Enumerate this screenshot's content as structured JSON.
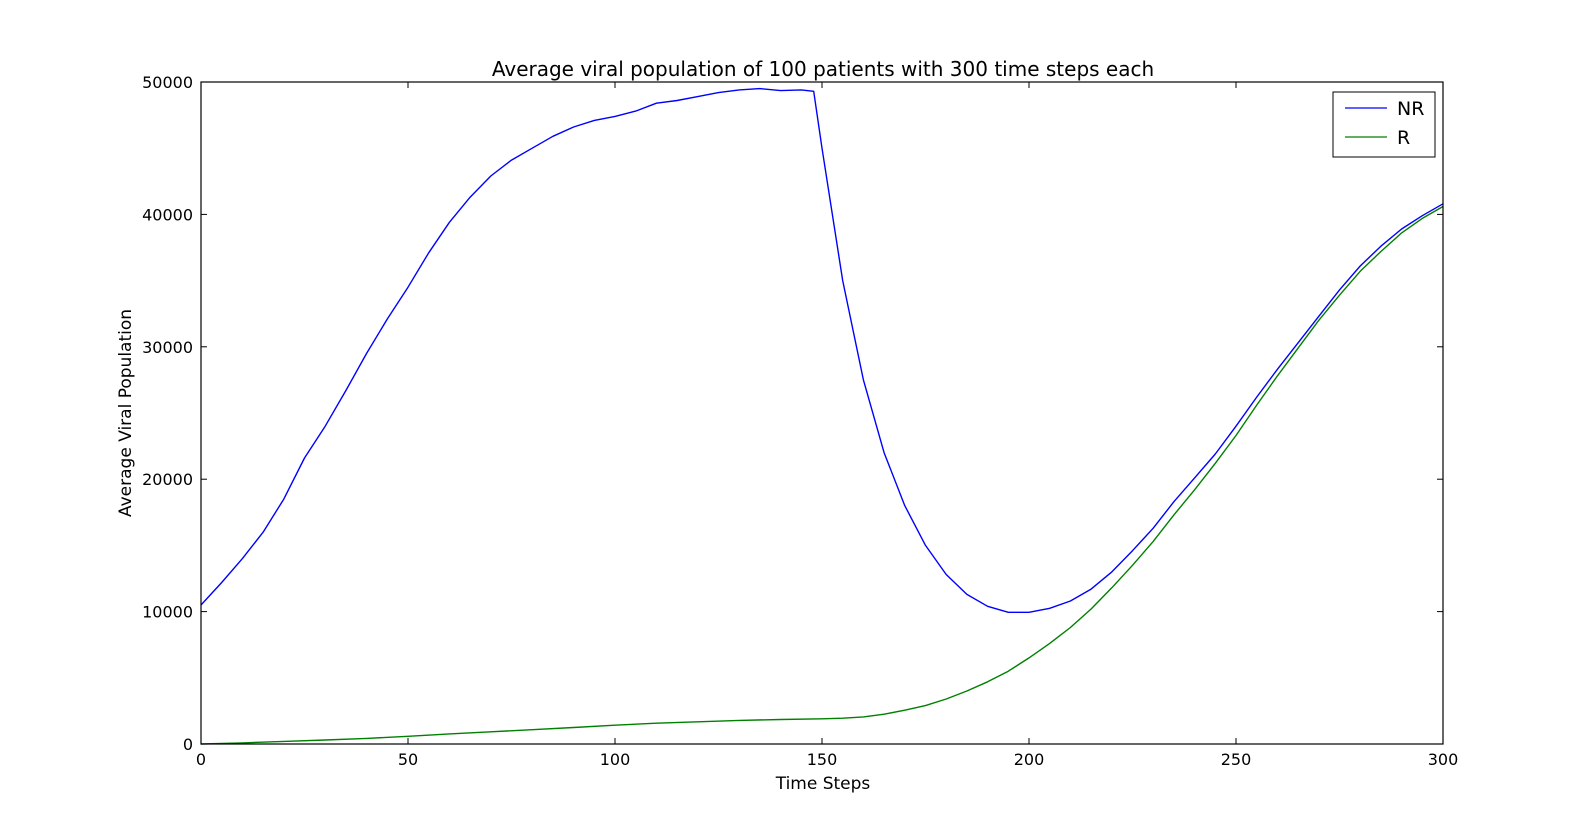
{
  "chart_data": {
    "type": "line",
    "title": "Average viral population of 100 patients with 300 time steps each",
    "xlabel": "Time Steps",
    "ylabel": "Average Viral Population",
    "xlim": [
      0,
      300
    ],
    "ylim": [
      0,
      50000
    ],
    "xticks": [
      0,
      50,
      100,
      150,
      200,
      250,
      300
    ],
    "yticks": [
      0,
      10000,
      20000,
      30000,
      40000,
      50000
    ],
    "grid": false,
    "legend_position": "top-right",
    "series": [
      {
        "name": "NR",
        "color": "#0000ff",
        "points": [
          [
            0,
            10500
          ],
          [
            5,
            12200
          ],
          [
            10,
            14000
          ],
          [
            15,
            16000
          ],
          [
            20,
            18500
          ],
          [
            25,
            21600
          ],
          [
            30,
            24000
          ],
          [
            35,
            26700
          ],
          [
            40,
            29500
          ],
          [
            45,
            32100
          ],
          [
            50,
            34500
          ],
          [
            55,
            37100
          ],
          [
            60,
            39400
          ],
          [
            65,
            41300
          ],
          [
            70,
            42900
          ],
          [
            75,
            44100
          ],
          [
            80,
            45000
          ],
          [
            85,
            45900
          ],
          [
            90,
            46600
          ],
          [
            95,
            47100
          ],
          [
            100,
            47400
          ],
          [
            105,
            47800
          ],
          [
            110,
            48400
          ],
          [
            115,
            48600
          ],
          [
            120,
            48900
          ],
          [
            125,
            49200
          ],
          [
            130,
            49400
          ],
          [
            135,
            49500
          ],
          [
            140,
            49350
          ],
          [
            145,
            49400
          ],
          [
            148,
            49300
          ],
          [
            150,
            45000
          ],
          [
            155,
            35000
          ],
          [
            160,
            27500
          ],
          [
            165,
            22000
          ],
          [
            170,
            18000
          ],
          [
            175,
            15000
          ],
          [
            180,
            12800
          ],
          [
            185,
            11300
          ],
          [
            190,
            10400
          ],
          [
            195,
            9950
          ],
          [
            200,
            9950
          ],
          [
            205,
            10250
          ],
          [
            210,
            10800
          ],
          [
            215,
            11700
          ],
          [
            220,
            13000
          ],
          [
            225,
            14600
          ],
          [
            230,
            16300
          ],
          [
            235,
            18300
          ],
          [
            240,
            20100
          ],
          [
            245,
            21900
          ],
          [
            250,
            24000
          ],
          [
            255,
            26200
          ],
          [
            260,
            28300
          ],
          [
            265,
            30300
          ],
          [
            270,
            32300
          ],
          [
            275,
            34300
          ],
          [
            280,
            36100
          ],
          [
            285,
            37600
          ],
          [
            290,
            38900
          ],
          [
            295,
            39900
          ],
          [
            300,
            40800
          ]
        ]
      },
      {
        "name": "R",
        "color": "#008000",
        "points": [
          [
            0,
            0
          ],
          [
            10,
            80
          ],
          [
            20,
            200
          ],
          [
            30,
            300
          ],
          [
            40,
            420
          ],
          [
            50,
            580
          ],
          [
            60,
            760
          ],
          [
            70,
            920
          ],
          [
            80,
            1080
          ],
          [
            90,
            1250
          ],
          [
            100,
            1420
          ],
          [
            110,
            1570
          ],
          [
            120,
            1680
          ],
          [
            130,
            1780
          ],
          [
            140,
            1850
          ],
          [
            150,
            1900
          ],
          [
            155,
            1950
          ],
          [
            160,
            2050
          ],
          [
            165,
            2250
          ],
          [
            170,
            2550
          ],
          [
            175,
            2900
          ],
          [
            180,
            3400
          ],
          [
            185,
            4000
          ],
          [
            190,
            4700
          ],
          [
            195,
            5500
          ],
          [
            200,
            6500
          ],
          [
            205,
            7600
          ],
          [
            210,
            8800
          ],
          [
            215,
            10200
          ],
          [
            220,
            11800
          ],
          [
            225,
            13500
          ],
          [
            230,
            15300
          ],
          [
            235,
            17300
          ],
          [
            240,
            19200
          ],
          [
            245,
            21200
          ],
          [
            250,
            23300
          ],
          [
            255,
            25600
          ],
          [
            260,
            27800
          ],
          [
            265,
            29900
          ],
          [
            270,
            32000
          ],
          [
            275,
            33900
          ],
          [
            280,
            35700
          ],
          [
            285,
            37200
          ],
          [
            290,
            38600
          ],
          [
            295,
            39700
          ],
          [
            300,
            40600
          ]
        ]
      }
    ]
  }
}
